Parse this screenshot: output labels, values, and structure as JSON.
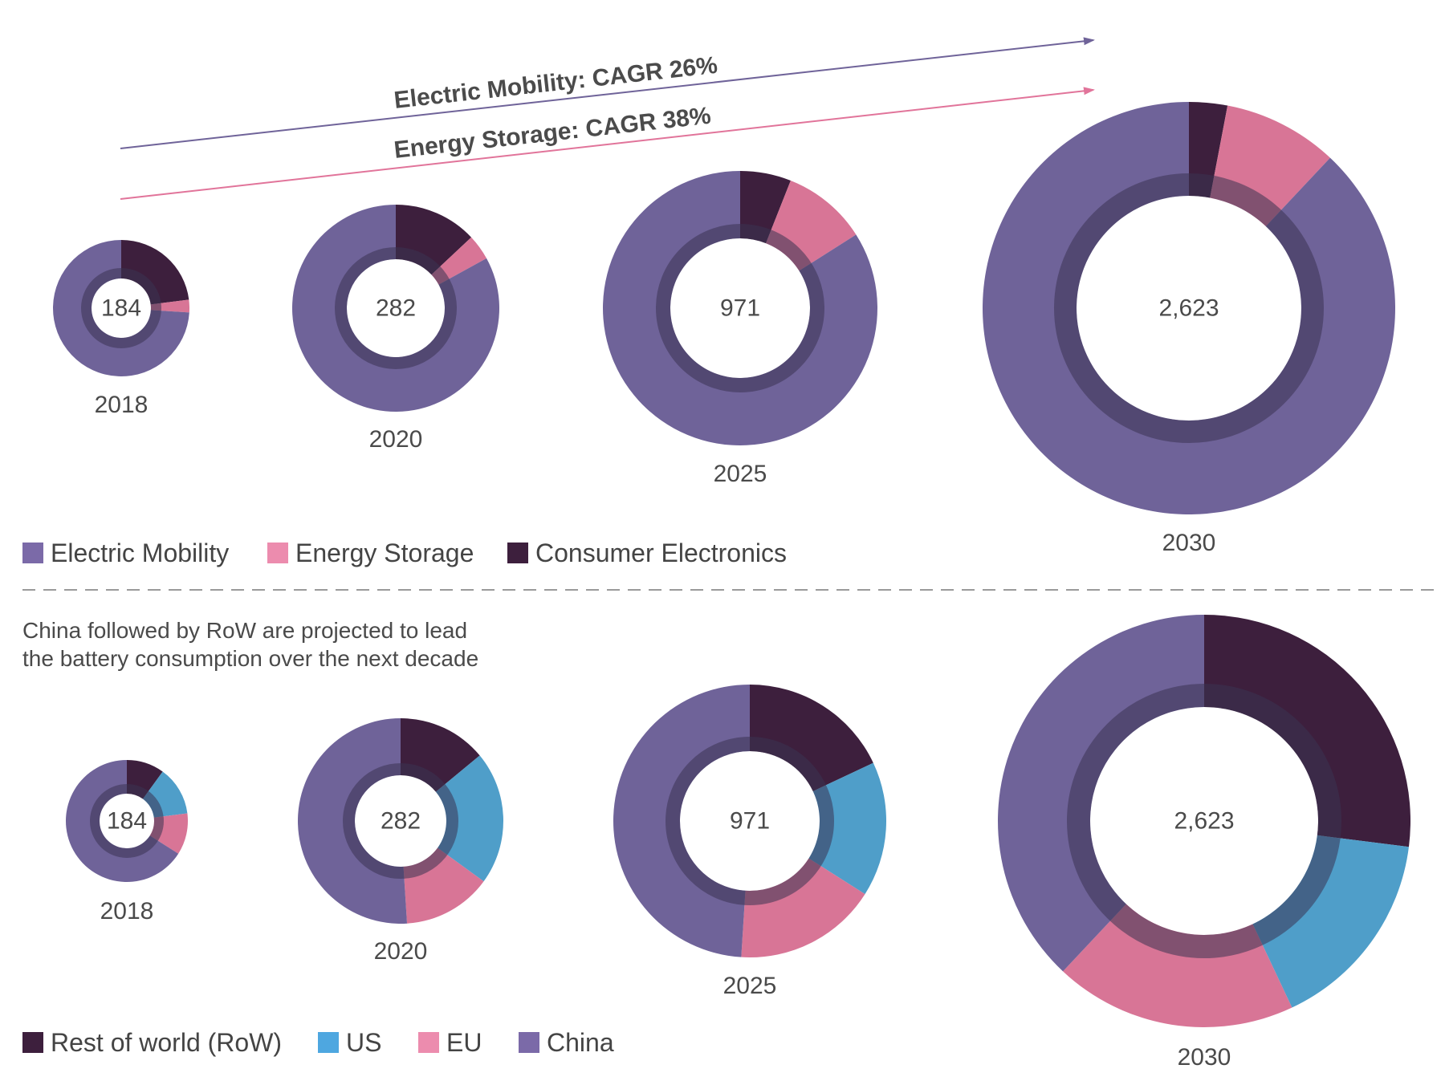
{
  "chart_data": [
    {
      "type": "donut",
      "categories": [
        "2018",
        "2020",
        "2025",
        "2030"
      ],
      "totals": [
        "184",
        "282",
        "971",
        "2,623"
      ],
      "series": [
        {
          "name": "Consumer Electronics",
          "values": [
            0.23,
            0.13,
            0.06,
            0.03
          ]
        },
        {
          "name": "Energy Storage",
          "values": [
            0.03,
            0.04,
            0.1,
            0.09
          ]
        },
        {
          "name": "Electric Mobility",
          "values": [
            0.74,
            0.83,
            0.84,
            0.88
          ]
        }
      ],
      "annotations": [
        {
          "text": "Electric Mobility: CAGR 26%",
          "color": "#6f6399"
        },
        {
          "text": "Energy Storage: CAGR 38%",
          "color": "#e1749a"
        }
      ]
    },
    {
      "type": "donut",
      "title": "China followed by RoW are projected to lead the battery consumption over the next decade",
      "title_lines": [
        "China followed by RoW are projected to lead",
        "the battery consumption over the next decade"
      ],
      "categories": [
        "2018",
        "2020",
        "2025",
        "2030"
      ],
      "totals": [
        "184",
        "282",
        "971",
        "2,623"
      ],
      "series": [
        {
          "name": "Rest of world (RoW)",
          "values": [
            0.1,
            0.14,
            0.18,
            0.27
          ]
        },
        {
          "name": "US",
          "values": [
            0.13,
            0.21,
            0.16,
            0.16
          ]
        },
        {
          "name": "EU",
          "values": [
            0.11,
            0.14,
            0.17,
            0.19
          ]
        },
        {
          "name": "China",
          "values": [
            0.66,
            0.51,
            0.49,
            0.38
          ]
        }
      ]
    }
  ],
  "legend_top": [
    {
      "label": "Electric Mobility",
      "color": "#7b6aa8"
    },
    {
      "label": "Energy Storage",
      "color": "#ec8cae"
    },
    {
      "label": "Consumer Electronics",
      "color": "#3d1f3d"
    }
  ],
  "legend_bottom": [
    {
      "label": "Rest of world (RoW)",
      "color": "#3d1f3d"
    },
    {
      "label": "US",
      "color": "#4ea7e0"
    },
    {
      "label": "EU",
      "color": "#ec8cae"
    },
    {
      "label": "China",
      "color": "#7b6aa8"
    }
  ],
  "colors": {
    "electric_mobility": "#6f6399",
    "energy_storage": "#d87596",
    "consumer_electronics": "#3d1f3d",
    "rest_of_world": "#3d1f3d",
    "us": "#4f9ec9",
    "eu": "#d87596",
    "china": "#6f6399",
    "inner_ring": "#3a3352"
  }
}
